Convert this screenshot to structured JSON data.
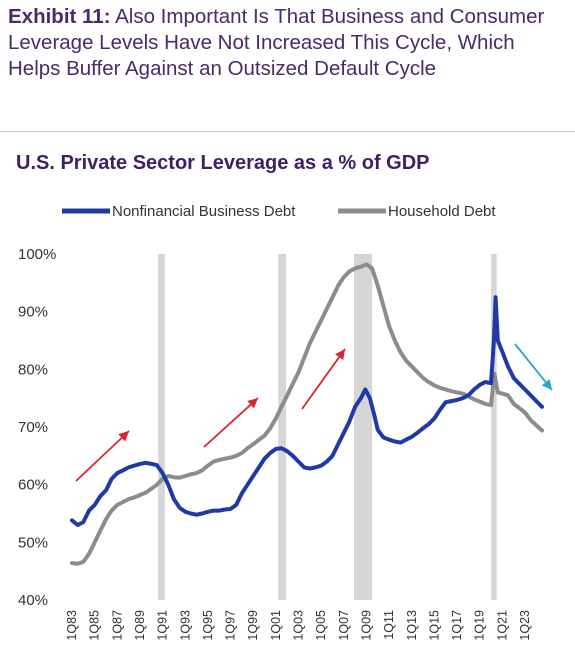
{
  "exhibit": {
    "label": "Exhibit 11:",
    "title": "Also Important Is That Business and Consumer Leverage Levels Have Not Increased This Cycle, Which Helps Buffer Against an Outsized Default Cycle"
  },
  "colors": {
    "business": "#1f3aa6",
    "household": "#8c8c8c",
    "recession": "#d6d6d6",
    "arrow_up": "#d9262c",
    "arrow_down": "#2aa5c6"
  },
  "chart_data": {
    "type": "line",
    "title": "U.S. Private Sector Leverage as a % of GDP",
    "xlabel": "",
    "ylabel": "",
    "ylim": [
      40,
      100
    ],
    "y_ticks": [
      "40%",
      "50%",
      "60%",
      "70%",
      "80%",
      "90%",
      "100%"
    ],
    "x_ticks": [
      "1Q83",
      "1Q85",
      "1Q87",
      "1Q89",
      "1Q91",
      "1Q93",
      "1Q95",
      "1Q97",
      "1Q99",
      "1Q01",
      "1Q03",
      "1Q05",
      "1Q07",
      "1Q09",
      "1Q11",
      "1Q13",
      "1Q15",
      "1Q17",
      "1Q19",
      "1Q21",
      "1Q23"
    ],
    "recessions": [
      [
        1990.6,
        1991.2
      ],
      [
        2001.2,
        2001.9
      ],
      [
        2007.9,
        2009.5
      ],
      [
        2020.0,
        2020.5
      ]
    ],
    "grid": false,
    "legend_position": "top",
    "series": [
      {
        "name": "Nonfinancial Business Debt",
        "points": [
          [
            1983.0,
            53.8
          ],
          [
            1983.5,
            53
          ],
          [
            1984.0,
            53.5
          ],
          [
            1984.5,
            55.5
          ],
          [
            1985.0,
            56.5
          ],
          [
            1985.5,
            58
          ],
          [
            1986.0,
            59
          ],
          [
            1986.5,
            61
          ],
          [
            1987.0,
            62
          ],
          [
            1987.5,
            62.5
          ],
          [
            1988.0,
            63
          ],
          [
            1988.5,
            63.3
          ],
          [
            1989.0,
            63.6
          ],
          [
            1989.5,
            63.8
          ],
          [
            1990.0,
            63.6
          ],
          [
            1990.5,
            63.4
          ],
          [
            1991.0,
            62
          ],
          [
            1991.5,
            60
          ],
          [
            1992.0,
            57.5
          ],
          [
            1992.5,
            56
          ],
          [
            1993.0,
            55.3
          ],
          [
            1993.5,
            55
          ],
          [
            1994.0,
            54.8
          ],
          [
            1994.5,
            55
          ],
          [
            1995.0,
            55.3
          ],
          [
            1995.5,
            55.5
          ],
          [
            1996.0,
            55.5
          ],
          [
            1996.5,
            55.7
          ],
          [
            1997.0,
            55.8
          ],
          [
            1997.5,
            56.5
          ],
          [
            1998.0,
            58.5
          ],
          [
            1998.5,
            60
          ],
          [
            1999.0,
            61.5
          ],
          [
            1999.5,
            63
          ],
          [
            2000.0,
            64.5
          ],
          [
            2000.5,
            65.5
          ],
          [
            2001.0,
            66.2
          ],
          [
            2001.5,
            66.3
          ],
          [
            2002.0,
            65.8
          ],
          [
            2002.5,
            65
          ],
          [
            2003.0,
            64
          ],
          [
            2003.5,
            63
          ],
          [
            2004.0,
            62.8
          ],
          [
            2004.5,
            63
          ],
          [
            2005.0,
            63.3
          ],
          [
            2005.5,
            64
          ],
          [
            2006.0,
            65
          ],
          [
            2006.5,
            67
          ],
          [
            2007.0,
            69
          ],
          [
            2007.5,
            71
          ],
          [
            2008.0,
            73.5
          ],
          [
            2008.5,
            75
          ],
          [
            2008.9,
            76.5
          ],
          [
            2009.3,
            75
          ],
          [
            2009.7,
            72
          ],
          [
            2010.0,
            69.5
          ],
          [
            2010.5,
            68.2
          ],
          [
            2011.0,
            67.8
          ],
          [
            2011.5,
            67.5
          ],
          [
            2012.0,
            67.3
          ],
          [
            2012.5,
            67.8
          ],
          [
            2013.0,
            68.3
          ],
          [
            2013.5,
            69
          ],
          [
            2014.0,
            69.8
          ],
          [
            2014.5,
            70.5
          ],
          [
            2015.0,
            71.5
          ],
          [
            2015.5,
            73
          ],
          [
            2016.0,
            74.3
          ],
          [
            2016.5,
            74.5
          ],
          [
            2017.0,
            74.7
          ],
          [
            2017.5,
            75
          ],
          [
            2018.0,
            75.5
          ],
          [
            2018.5,
            76.5
          ],
          [
            2019.0,
            77.3
          ],
          [
            2019.5,
            77.8
          ],
          [
            2020.0,
            77.6
          ],
          [
            2020.25,
            85
          ],
          [
            2020.4,
            92.5
          ],
          [
            2020.6,
            85
          ],
          [
            2021.0,
            83
          ],
          [
            2021.5,
            80.5
          ],
          [
            2022.0,
            78.5
          ],
          [
            2022.5,
            77.5
          ],
          [
            2023.0,
            76.5
          ],
          [
            2023.5,
            75.5
          ],
          [
            2024.0,
            74.5
          ],
          [
            2024.5,
            73.5
          ]
        ]
      },
      {
        "name": "Household Debt",
        "points": [
          [
            1983.0,
            46.4
          ],
          [
            1983.5,
            46.3
          ],
          [
            1984.0,
            46.6
          ],
          [
            1984.5,
            48
          ],
          [
            1985.0,
            50
          ],
          [
            1985.5,
            52
          ],
          [
            1986.0,
            54
          ],
          [
            1986.5,
            55.5
          ],
          [
            1987.0,
            56.5
          ],
          [
            1987.5,
            57
          ],
          [
            1988.0,
            57.5
          ],
          [
            1988.5,
            57.8
          ],
          [
            1989.0,
            58.2
          ],
          [
            1989.5,
            58.6
          ],
          [
            1990.0,
            59.3
          ],
          [
            1990.5,
            60
          ],
          [
            1991.0,
            61
          ],
          [
            1991.5,
            61.5
          ],
          [
            1992.0,
            61.3
          ],
          [
            1992.5,
            61.2
          ],
          [
            1993.0,
            61.5
          ],
          [
            1993.5,
            61.8
          ],
          [
            1994.0,
            62
          ],
          [
            1994.5,
            62.5
          ],
          [
            1995.0,
            63.3
          ],
          [
            1995.5,
            64
          ],
          [
            1996.0,
            64.3
          ],
          [
            1996.5,
            64.5
          ],
          [
            1997.0,
            64.7
          ],
          [
            1997.5,
            65
          ],
          [
            1998.0,
            65.5
          ],
          [
            1998.5,
            66.3
          ],
          [
            1999.0,
            67
          ],
          [
            1999.5,
            67.8
          ],
          [
            2000.0,
            68.5
          ],
          [
            2000.5,
            69.8
          ],
          [
            2001.0,
            71.5
          ],
          [
            2001.5,
            73.5
          ],
          [
            2002.0,
            75.5
          ],
          [
            2002.5,
            77.5
          ],
          [
            2003.0,
            79.5
          ],
          [
            2003.5,
            82
          ],
          [
            2004.0,
            84.5
          ],
          [
            2004.5,
            86.5
          ],
          [
            2005.0,
            88.5
          ],
          [
            2005.5,
            90.5
          ],
          [
            2006.0,
            92.5
          ],
          [
            2006.5,
            94.5
          ],
          [
            2007.0,
            96
          ],
          [
            2007.5,
            97
          ],
          [
            2008.0,
            97.5
          ],
          [
            2008.5,
            97.8
          ],
          [
            2009.0,
            98.2
          ],
          [
            2009.5,
            97.5
          ],
          [
            2010.0,
            94.5
          ],
          [
            2010.5,
            91
          ],
          [
            2011.0,
            87.5
          ],
          [
            2011.5,
            85
          ],
          [
            2012.0,
            83
          ],
          [
            2012.5,
            81.5
          ],
          [
            2013.0,
            80.5
          ],
          [
            2013.5,
            79.5
          ],
          [
            2014.0,
            78.5
          ],
          [
            2014.5,
            77.8
          ],
          [
            2015.0,
            77.2
          ],
          [
            2015.5,
            76.8
          ],
          [
            2016.0,
            76.5
          ],
          [
            2016.5,
            76.2
          ],
          [
            2017.0,
            76
          ],
          [
            2017.5,
            75.8
          ],
          [
            2018.0,
            75.3
          ],
          [
            2018.5,
            74.8
          ],
          [
            2019.0,
            74.4
          ],
          [
            2019.5,
            74
          ],
          [
            2020.0,
            73.8
          ],
          [
            2020.3,
            79.2
          ],
          [
            2020.6,
            76
          ],
          [
            2021.0,
            75.8
          ],
          [
            2021.5,
            75.5
          ],
          [
            2022.0,
            74
          ],
          [
            2022.5,
            73.3
          ],
          [
            2023.0,
            72.5
          ],
          [
            2023.5,
            71.2
          ],
          [
            2024.0,
            70.3
          ],
          [
            2024.5,
            69.4
          ]
        ]
      }
    ]
  }
}
